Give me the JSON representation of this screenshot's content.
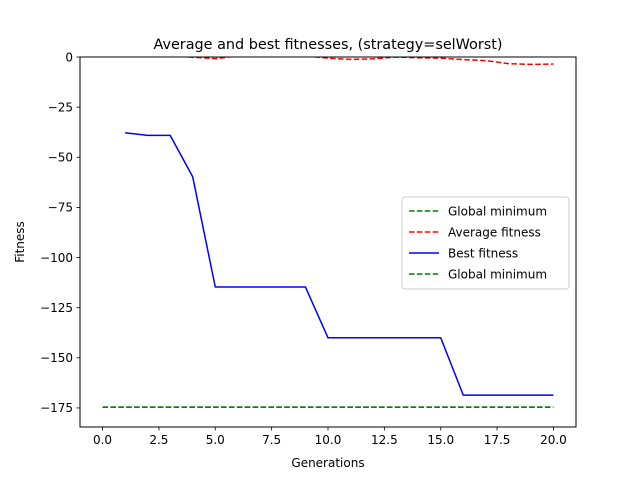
{
  "chart_data": {
    "type": "line",
    "title": "Average and best fitnesses, (strategy=selWorst)",
    "xlabel": "Generations",
    "ylabel": "Fitness",
    "xlim": [
      -1.0,
      21.0
    ],
    "ylim": [
      -184.5,
      0
    ],
    "xticks": [
      0.0,
      2.5,
      5.0,
      7.5,
      10.0,
      12.5,
      15.0,
      17.5,
      20.0
    ],
    "xtick_labels": [
      "0.0",
      "2.5",
      "5.0",
      "7.5",
      "10.0",
      "12.5",
      "15.0",
      "17.5",
      "20.0"
    ],
    "yticks": [
      0,
      -25,
      -50,
      -75,
      -100,
      -125,
      -150,
      -175
    ],
    "ytick_labels": [
      "0",
      "−25",
      "−50",
      "−75",
      "−100",
      "−125",
      "−150",
      "−175"
    ],
    "grid": false,
    "legend_position": "center-right",
    "series": [
      {
        "name": "Global minimum",
        "style": "dashed",
        "color": "#008000",
        "x": [
          0,
          20
        ],
        "y": [
          -174.6,
          -174.6
        ]
      },
      {
        "name": "Average fitness",
        "style": "dashed",
        "color": "#ff0000",
        "x": [
          1,
          2,
          3,
          4,
          5,
          6,
          7,
          8,
          9,
          10,
          11,
          12,
          13,
          14,
          15,
          16,
          17,
          18,
          19,
          20
        ],
        "y": [
          0.5,
          0.5,
          0.5,
          -0.1,
          -0.8,
          0.5,
          0.5,
          0.5,
          0.5,
          -0.6,
          -1.2,
          -0.9,
          0.0,
          -0.4,
          -0.6,
          -1.3,
          -1.8,
          -3.3,
          -3.7,
          -3.5
        ]
      },
      {
        "name": "Best fitness",
        "style": "solid",
        "color": "#0000ff",
        "x": [
          1,
          2,
          3,
          4,
          5,
          6,
          7,
          8,
          9,
          10,
          11,
          12,
          13,
          14,
          15,
          16,
          17,
          18,
          19,
          20
        ],
        "y": [
          -37.8,
          -39.1,
          -39.1,
          -59.8,
          -114.7,
          -114.7,
          -114.7,
          -114.7,
          -114.7,
          -140.0,
          -140.0,
          -140.0,
          -140.0,
          -140.0,
          -140.0,
          -168.6,
          -168.6,
          -168.6,
          -168.6,
          -168.6
        ]
      },
      {
        "name": "Global minimum",
        "style": "dashed",
        "color": "#008000",
        "x": [
          0,
          20
        ],
        "y": [
          -174.6,
          -174.6
        ]
      }
    ]
  }
}
